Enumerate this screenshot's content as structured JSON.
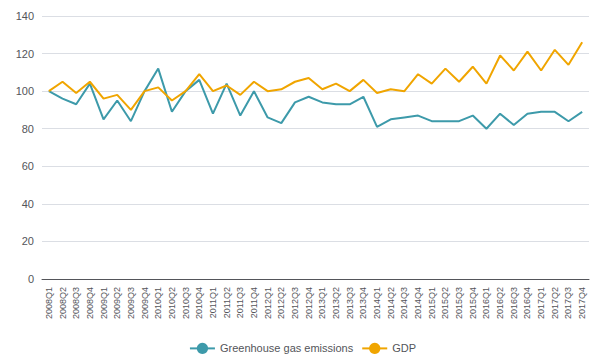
{
  "chart_data": {
    "type": "line",
    "categories": [
      "2008Q1",
      "2008Q2",
      "2008Q3",
      "2008Q4",
      "2009Q1",
      "2009Q2",
      "2009Q3",
      "2009Q4",
      "2010Q1",
      "2010Q2",
      "2010Q3",
      "2010Q4",
      "2011Q1",
      "2011Q2",
      "2011Q3",
      "2011Q4",
      "2012Q1",
      "2012Q2",
      "2012Q3",
      "2012Q4",
      "2013Q1",
      "2013Q2",
      "2013Q3",
      "2013Q4",
      "2014Q1",
      "2014Q2",
      "2014Q3",
      "2014Q4",
      "2015Q1",
      "2015Q2",
      "2015Q3",
      "2015Q4",
      "2016Q1",
      "2016Q2",
      "2016Q3",
      "2016Q4",
      "2017Q1",
      "2017Q2",
      "2017Q3",
      "2017Q4"
    ],
    "series": [
      {
        "name": "Greenhouse gas emissions",
        "color": "#3D9AAA",
        "values": [
          100,
          96,
          93,
          104,
          85,
          95,
          84,
          100,
          112,
          89,
          100,
          106,
          88,
          104,
          87,
          100,
          86,
          83,
          94,
          97,
          94,
          93,
          93,
          97,
          81,
          85,
          86,
          87,
          84,
          84,
          84,
          87,
          80,
          88,
          82,
          88,
          89,
          89,
          84,
          89
        ]
      },
      {
        "name": "GDP",
        "color": "#F0A500",
        "values": [
          100,
          105,
          99,
          105,
          96,
          98,
          90,
          100,
          102,
          95,
          100,
          109,
          100,
          103,
          98,
          105,
          100,
          101,
          105,
          107,
          101,
          104,
          100,
          106,
          99,
          101,
          100,
          109,
          104,
          112,
          105,
          113,
          104,
          119,
          111,
          121,
          111,
          122,
          114,
          126
        ]
      }
    ],
    "ylim": [
      0,
      140
    ],
    "yticks": [
      0,
      20,
      40,
      60,
      80,
      100,
      120,
      140
    ],
    "grid": true,
    "legend": "bottom"
  }
}
